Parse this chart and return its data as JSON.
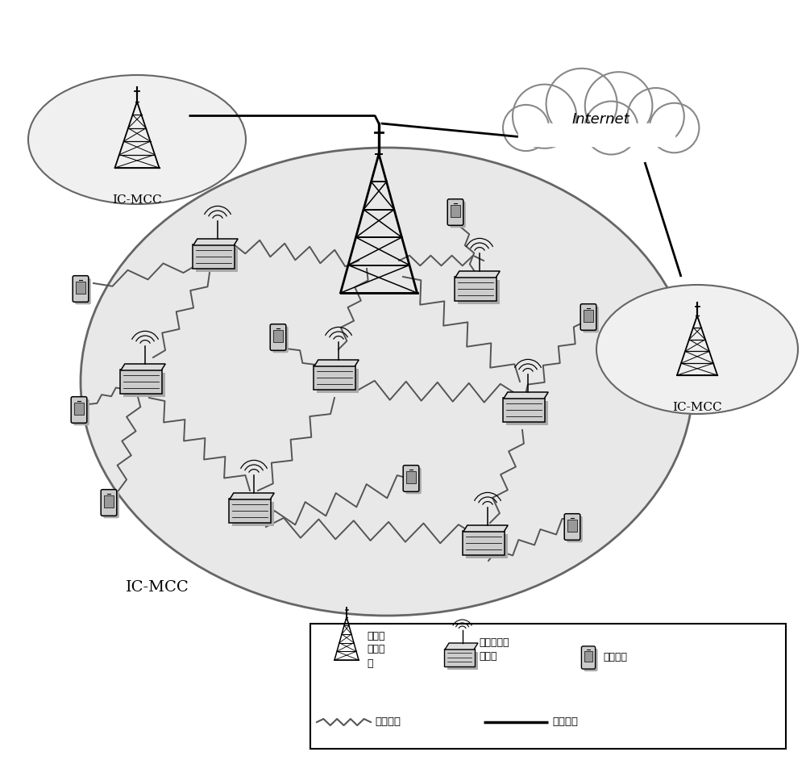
{
  "white": "#ffffff",
  "black": "#000000",
  "light_gray_fill": "#e8e8e8",
  "ellipse_edge": "#666666",
  "internet_label": "Internet",
  "ic_mcc_label": "IC-MCC",
  "legend_wireless": "无线链路",
  "legend_wired": "有线链路",
  "legend_tower_label": "二级服\n务供应\n商",
  "legend_router_label": "认知无线电\n路由器",
  "legend_mobile_label": "移动用户",
  "figsize": [
    10.0,
    9.63
  ],
  "dpi": 100
}
